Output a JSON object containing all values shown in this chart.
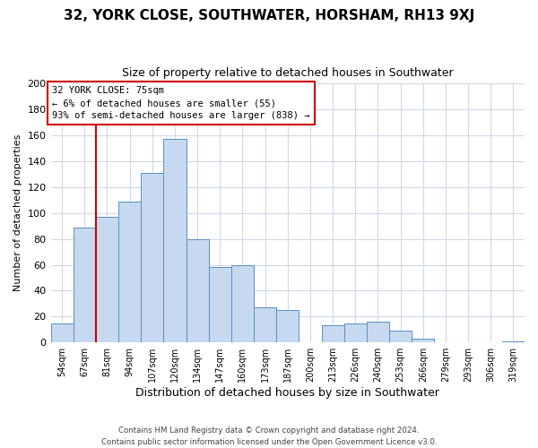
{
  "title": "32, YORK CLOSE, SOUTHWATER, HORSHAM, RH13 9XJ",
  "subtitle": "Size of property relative to detached houses in Southwater",
  "xlabel": "Distribution of detached houses by size in Southwater",
  "ylabel": "Number of detached properties",
  "bin_labels": [
    "54sqm",
    "67sqm",
    "81sqm",
    "94sqm",
    "107sqm",
    "120sqm",
    "134sqm",
    "147sqm",
    "160sqm",
    "173sqm",
    "187sqm",
    "200sqm",
    "213sqm",
    "226sqm",
    "240sqm",
    "253sqm",
    "266sqm",
    "279sqm",
    "293sqm",
    "306sqm",
    "319sqm"
  ],
  "bar_heights": [
    15,
    89,
    97,
    109,
    131,
    157,
    80,
    58,
    60,
    27,
    25,
    0,
    13,
    15,
    16,
    9,
    3,
    0,
    0,
    0,
    1
  ],
  "bar_color": "#c6d9f0",
  "bar_edge_color": "#5a8fc3",
  "highlight_line_color": "#cc0000",
  "annotation_title": "32 YORK CLOSE: 75sqm",
  "annotation_line1": "← 6% of detached houses are smaller (55)",
  "annotation_line2": "93% of semi-detached houses are larger (838) →",
  "annotation_box_color": "#ffffff",
  "annotation_box_edge": "#cc0000",
  "ylim": [
    0,
    200
  ],
  "yticks": [
    0,
    20,
    40,
    60,
    80,
    100,
    120,
    140,
    160,
    180,
    200
  ],
  "footer_line1": "Contains HM Land Registry data © Crown copyright and database right 2024.",
  "footer_line2": "Contains public sector information licensed under the Open Government Licence v3.0.",
  "bg_color": "#ffffff",
  "grid_color": "#d0d8e8"
}
